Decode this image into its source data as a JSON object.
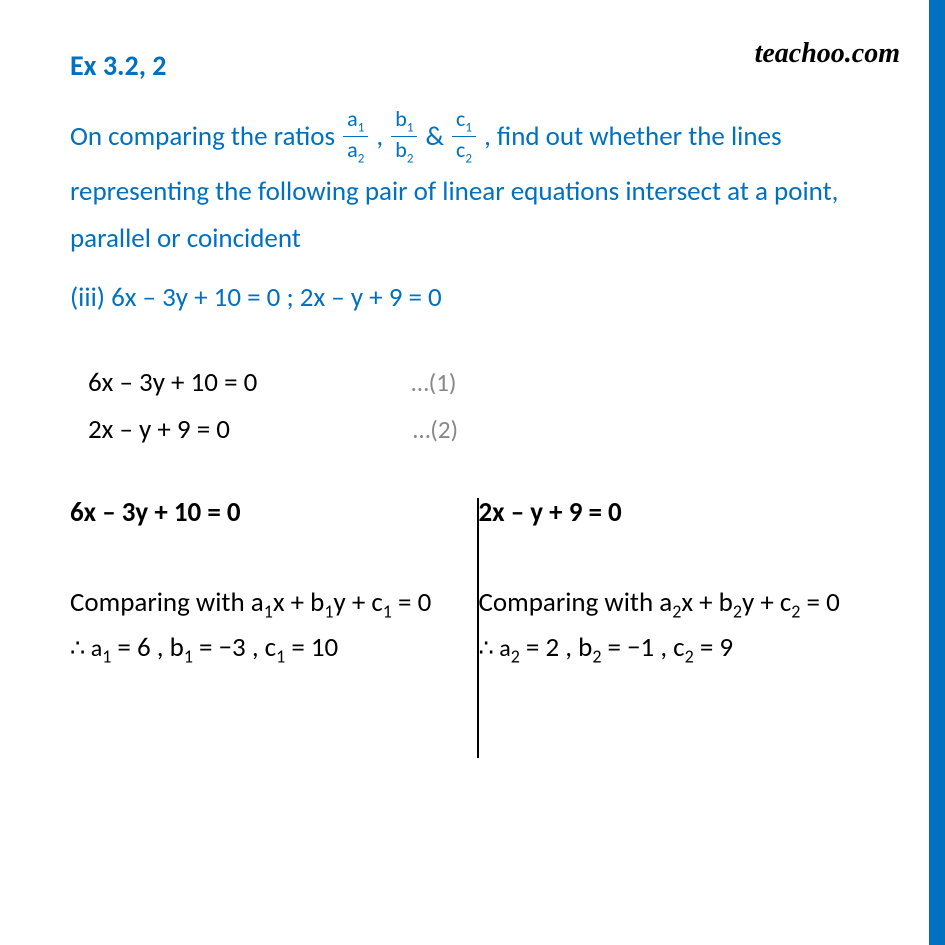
{
  "brand": "teachoo.com",
  "exercise": "Ex 3.2, 2",
  "question_pre": "On comparing the ratios ",
  "question_post": " , find out whether the lines representing the following pair of linear equations intersect at a point, parallel or coincident",
  "part": "(iii) 6x – 3y + 10 = 0 ; 2x – y + 9 = 0",
  "eq1": "6x – 3y + 10 = 0",
  "eq1_num": "…(1)",
  "eq2": "2x – y + 9 = 0",
  "eq2_num": "…(2)",
  "left": {
    "heading": "6x – 3y + 10 = 0",
    "compare_pre": "Comparing with a",
    "compare_mid1": "x + b",
    "compare_mid2": "y + c",
    "compare_post": " = 0",
    "therefore_a": "∴ a",
    "a_val": " = 6 , b",
    "b_val": " = −3 , c",
    "c_val": " = 10",
    "sub": "1"
  },
  "right": {
    "heading": "2x – y + 9 = 0",
    "compare_pre": "Comparing with a",
    "compare_mid1": "x + b",
    "compare_mid2": "y + c",
    "compare_post": " = 0",
    "therefore_a": "∴ a",
    "a_val": " = 2 , b",
    "b_val": " = −1 , c",
    "c_val": " = 9",
    "sub": "2"
  },
  "ratios": {
    "a_num": "a",
    "b_num": "b",
    "c_num": "c",
    "sub1": "1",
    "sub2": "2",
    "comma": " , ",
    "amp": " & "
  }
}
